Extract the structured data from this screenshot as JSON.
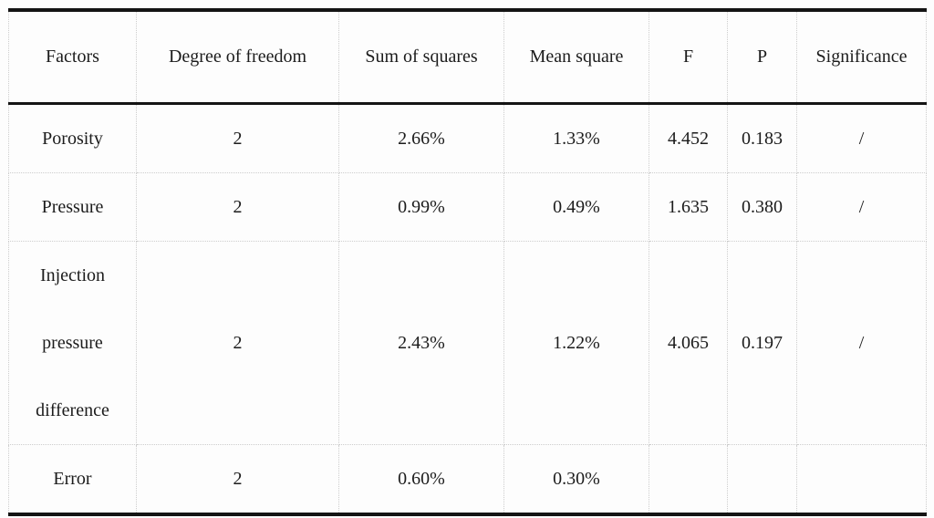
{
  "table": {
    "columns": [
      "Factors",
      "Degree of freedom",
      "Sum of squares",
      "Mean square",
      "F",
      "P",
      "Significance"
    ],
    "rows": [
      [
        "Porosity",
        "2",
        "2.66%",
        "1.33%",
        "4.452",
        "0.183",
        "/"
      ],
      [
        "Pressure",
        "2",
        "0.99%",
        "0.49%",
        "1.635",
        "0.380",
        "/"
      ],
      [
        "Injection pressure difference",
        "2",
        "2.43%",
        "1.22%",
        "4.065",
        "0.197",
        "/"
      ],
      [
        "Error",
        "2",
        "0.60%",
        "0.30%",
        "",
        "",
        ""
      ]
    ],
    "style": {
      "rule_color": "#141414",
      "gridline_color": "#cdcdcd",
      "text_color": "#1c1c1c",
      "background": "#fdfdfd"
    }
  }
}
